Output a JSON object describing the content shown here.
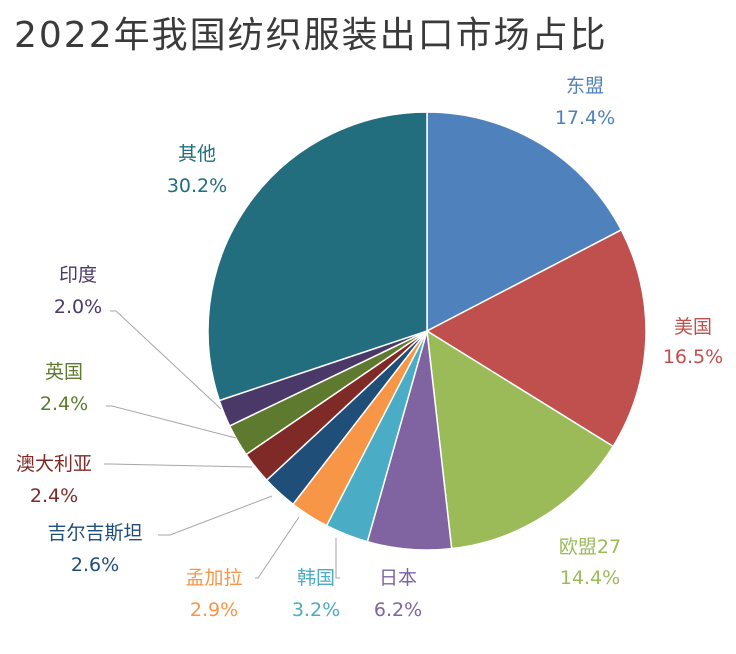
{
  "chart_data": {
    "type": "pie",
    "title": "2022年我国纺织服装出口市场占比",
    "start_angle_deg": 0,
    "direction": "clockwise",
    "slices": [
      {
        "label": "东盟",
        "value": 17.4,
        "pct_label": "17.4%",
        "color": "#4f81bd"
      },
      {
        "label": "美国",
        "value": 16.5,
        "pct_label": "16.5%",
        "color": "#c0504d"
      },
      {
        "label": "欧盟27",
        "value": 14.4,
        "pct_label": "14.4%",
        "color": "#9bbb59"
      },
      {
        "label": "日本",
        "value": 6.2,
        "pct_label": "6.2%",
        "color": "#8064a2"
      },
      {
        "label": "韩国",
        "value": 3.2,
        "pct_label": "3.2%",
        "color": "#4bacc6"
      },
      {
        "label": "孟加拉",
        "value": 2.9,
        "pct_label": "2.9%",
        "color": "#f79646"
      },
      {
        "label": "吉尔吉斯坦",
        "value": 2.6,
        "pct_label": "2.6%",
        "color": "#1f4e79"
      },
      {
        "label": "澳大利亚",
        "value": 2.4,
        "pct_label": "2.4%",
        "color": "#7f2a27"
      },
      {
        "label": "英国",
        "value": 2.4,
        "pct_label": "2.4%",
        "color": "#5e7a2e"
      },
      {
        "label": "印度",
        "value": 2.0,
        "pct_label": "2.0%",
        "color": "#4a3968"
      },
      {
        "label": "其他",
        "value": 30.2,
        "pct_label": "30.2%",
        "color": "#226e7f"
      }
    ]
  }
}
